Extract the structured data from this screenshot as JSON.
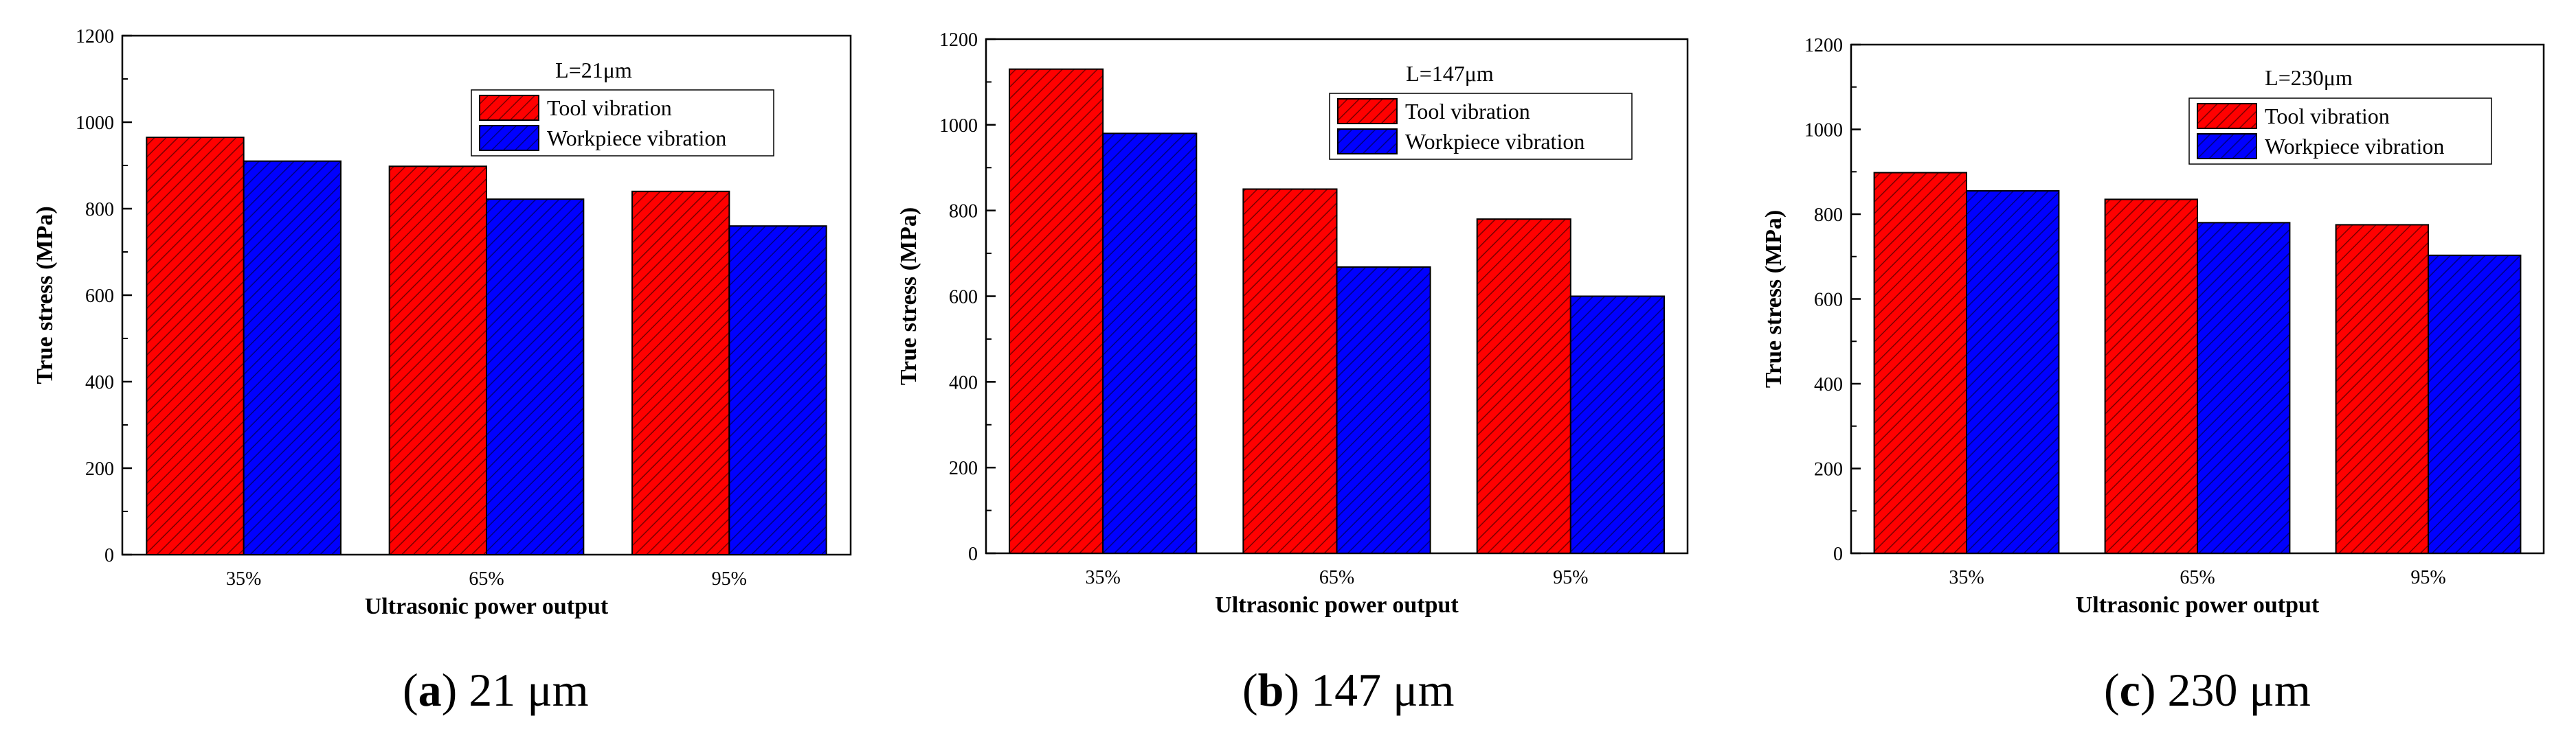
{
  "chart_data": [
    {
      "type": "bar",
      "panel": "a",
      "note": "L=21μm",
      "caption_letter": "a",
      "caption_text": " 21 μm",
      "xlabel": "Ultrasonic power output",
      "ylabel": "True stress (MPa)",
      "ylim": [
        0,
        1200
      ],
      "yticks": [
        0,
        200,
        400,
        600,
        800,
        1000,
        1200
      ],
      "categories": [
        "35%",
        "65%",
        "95%"
      ],
      "series": [
        {
          "name": "Tool vibration",
          "color": "#ff0000",
          "values": [
            965,
            898,
            840
          ]
        },
        {
          "name": "Workpiece vibration",
          "color": "#0000ff",
          "values": [
            910,
            822,
            760
          ]
        }
      ],
      "legend_position": "top-right"
    },
    {
      "type": "bar",
      "panel": "b",
      "note": "L=147μm",
      "caption_letter": "b",
      "caption_text": " 147 μm",
      "xlabel": "Ultrasonic power output",
      "ylabel": "True stress (MPa)",
      "ylim": [
        0,
        1200
      ],
      "yticks": [
        0,
        200,
        400,
        600,
        800,
        1000,
        1200
      ],
      "categories": [
        "35%",
        "65%",
        "95%"
      ],
      "series": [
        {
          "name": "Tool vibration",
          "color": "#ff0000",
          "values": [
            1130,
            850,
            780
          ]
        },
        {
          "name": "Workpiece vibration",
          "color": "#0000ff",
          "values": [
            980,
            668,
            600
          ]
        }
      ],
      "legend_position": "top-right"
    },
    {
      "type": "bar",
      "panel": "c",
      "note": "L=230μm",
      "caption_letter": "c",
      "caption_text": " 230 μm",
      "xlabel": "Ultrasonic power output",
      "ylabel": "True stress (MPa)",
      "ylim": [
        0,
        1200
      ],
      "yticks": [
        0,
        200,
        400,
        600,
        800,
        1000,
        1200
      ],
      "categories": [
        "35%",
        "65%",
        "95%"
      ],
      "series": [
        {
          "name": "Tool vibration",
          "color": "#ff0000",
          "values": [
            898,
            835,
            775
          ]
        },
        {
          "name": "Workpiece vibration",
          "color": "#0000ff",
          "values": [
            855,
            780,
            703
          ]
        }
      ],
      "legend_position": "top-right"
    }
  ]
}
